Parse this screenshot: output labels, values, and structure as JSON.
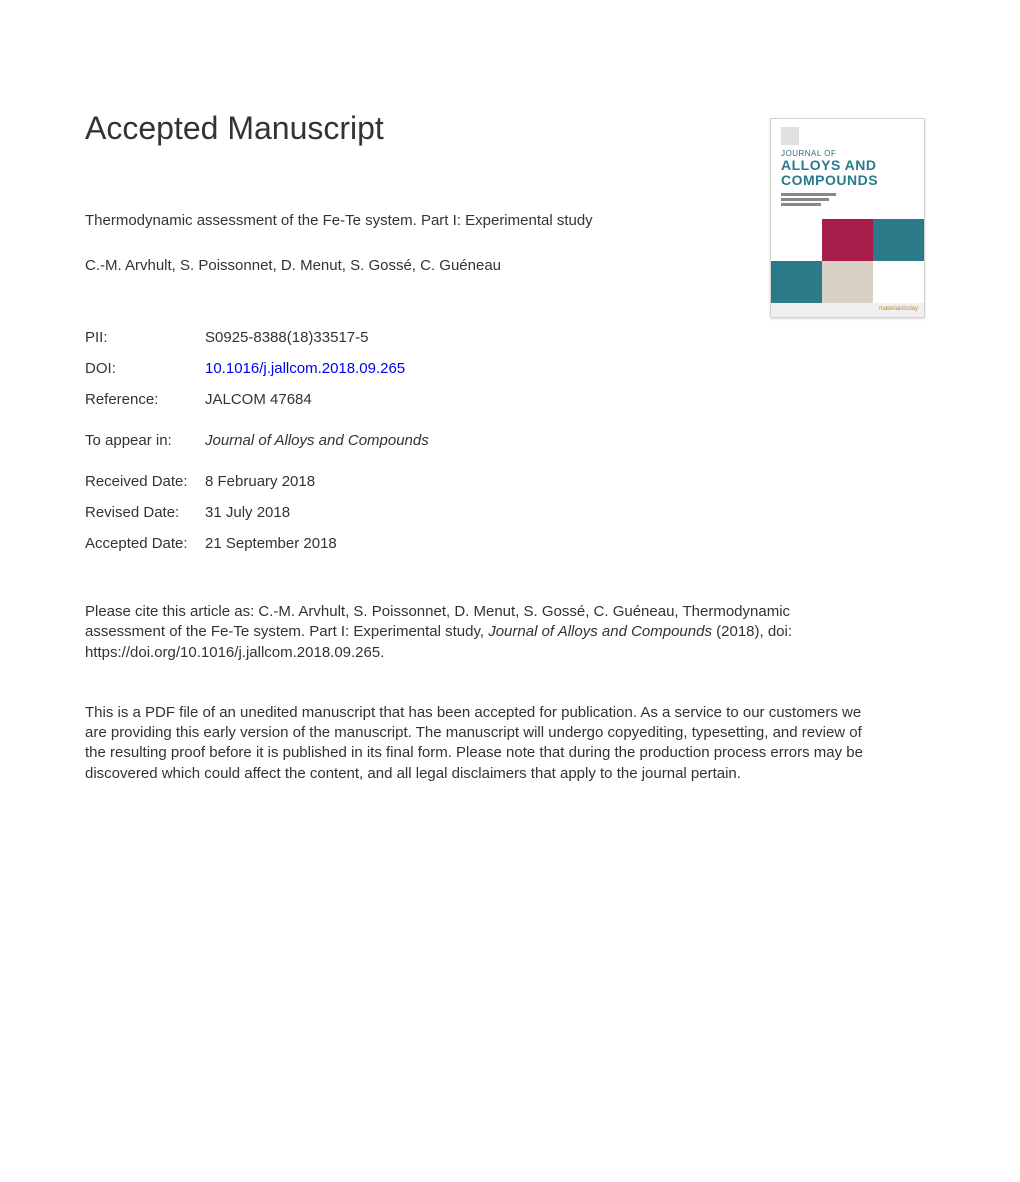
{
  "header": {
    "title": "Accepted Manuscript"
  },
  "article": {
    "title": "Thermodynamic assessment of the Fe-Te system. Part I: Experimental study",
    "authors": "C.-M. Arvhult, S. Poissonnet, D. Menut, S. Gossé, C. Guéneau"
  },
  "meta": {
    "pii_label": "PII:",
    "pii_value": "S0925-8388(18)33517-5",
    "doi_label": "DOI:",
    "doi_value": "10.1016/j.jallcom.2018.09.265",
    "ref_label": "Reference:",
    "ref_value": "JALCOM 47684"
  },
  "appear": {
    "label": "To appear in:",
    "value": "Journal of Alloys and Compounds"
  },
  "dates": {
    "received_label": "Received Date:",
    "received_value": "8 February 2018",
    "revised_label": "Revised Date:",
    "revised_value": "31 July 2018",
    "accepted_label": "Accepted Date:",
    "accepted_value": "21 September 2018"
  },
  "citation": {
    "lead": "Please cite this article as: C.-M. Arvhult, S. Poissonnet, D. Menut, S. Gossé, C. Guéneau, Thermodynamic assessment of the Fe-Te system. Part I: Experimental study, ",
    "journal": "Journal of Alloys and Compounds",
    "tail": " (2018), doi: https://doi.org/10.1016/j.jallcom.2018.09.265."
  },
  "disclaimer": "This is a PDF file of an unedited manuscript that has been accepted for publication. As a service to our customers we are providing this early version of the manuscript. The manuscript will undergo copyediting, typesetting, and review of the resulting proof before it is published in its final form. Please note that during the production process errors may be discovered which could affect the content, and all legal disclaimers that apply to the journal pertain.",
  "thumbnail": {
    "journal_of": "JOURNAL OF",
    "title_line1": "ALLOYS AND",
    "title_line2": "COMPOUNDS",
    "footer": "materialstoday",
    "colors": {
      "teal": "#2a7a8a",
      "magenta": "#a81e4a",
      "tan": "#d8d0c4",
      "white": "#ffffff"
    }
  }
}
